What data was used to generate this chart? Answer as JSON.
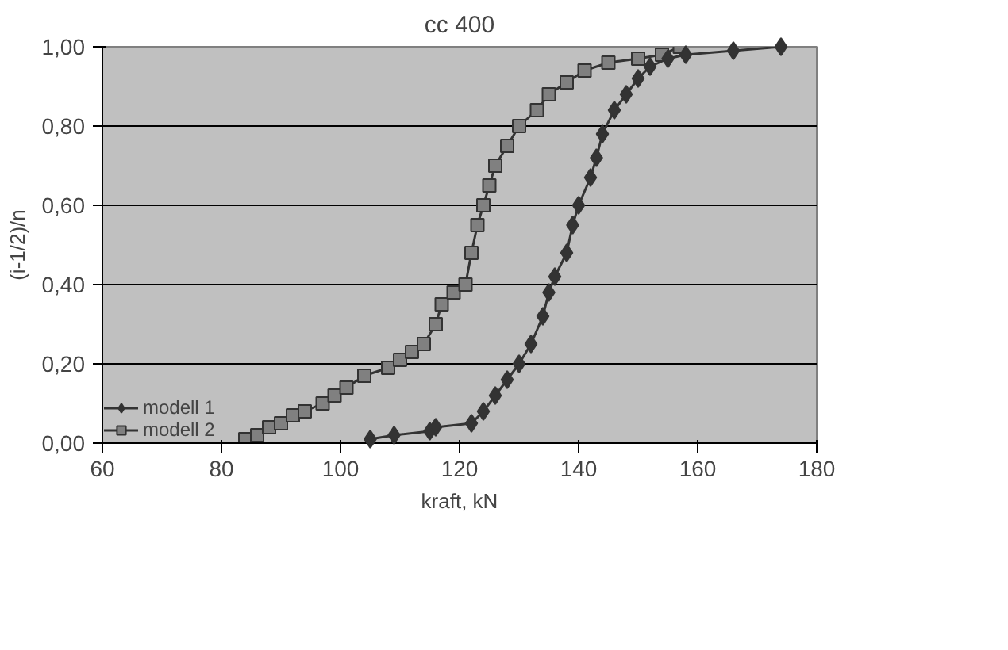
{
  "chart_data": {
    "type": "line",
    "title": "cc 400",
    "xlabel": "kraft, kN",
    "ylabel": "(i-1/2)/n",
    "xlim": [
      60,
      180
    ],
    "xticks": [
      60,
      80,
      100,
      120,
      140,
      160,
      180
    ],
    "ylim": [
      0,
      1
    ],
    "yticks": [
      {
        "value": 0,
        "label": "0,00"
      },
      {
        "value": 0.2,
        "label": "0,20"
      },
      {
        "value": 0.4,
        "label": "0,40"
      },
      {
        "value": 0.6,
        "label": "0,60"
      },
      {
        "value": 0.8,
        "label": "0,80"
      },
      {
        "value": 1,
        "label": "1,00"
      }
    ],
    "grid": "y",
    "legend": "bottom left",
    "series": [
      {
        "name": "modell 1",
        "color": "#333333",
        "marker": "diamond",
        "x": [
          105,
          109,
          115,
          116,
          122,
          124,
          126,
          128,
          130,
          132,
          134,
          135,
          136,
          138,
          139,
          140,
          142,
          143,
          144,
          146,
          148,
          150,
          152,
          155,
          158,
          166,
          174
        ],
        "values": [
          0.01,
          0.02,
          0.03,
          0.04,
          0.05,
          0.08,
          0.12,
          0.16,
          0.2,
          0.25,
          0.32,
          0.38,
          0.42,
          0.48,
          0.55,
          0.6,
          0.67,
          0.72,
          0.78,
          0.84,
          0.88,
          0.92,
          0.95,
          0.97,
          0.98,
          0.99,
          1.0
        ]
      },
      {
        "name": "modell 2",
        "color": "#808080",
        "marker": "square",
        "x": [
          84,
          86,
          88,
          90,
          92,
          94,
          97,
          99,
          101,
          104,
          108,
          110,
          112,
          114,
          116,
          117,
          119,
          121,
          122,
          123,
          124,
          125,
          126,
          128,
          130,
          133,
          135,
          138,
          141,
          145,
          150,
          154,
          157
        ],
        "values": [
          0.01,
          0.02,
          0.04,
          0.05,
          0.07,
          0.08,
          0.1,
          0.12,
          0.14,
          0.17,
          0.19,
          0.21,
          0.23,
          0.25,
          0.3,
          0.35,
          0.38,
          0.4,
          0.48,
          0.55,
          0.6,
          0.65,
          0.7,
          0.75,
          0.8,
          0.84,
          0.88,
          0.91,
          0.94,
          0.96,
          0.97,
          0.98,
          1.0
        ]
      }
    ]
  }
}
